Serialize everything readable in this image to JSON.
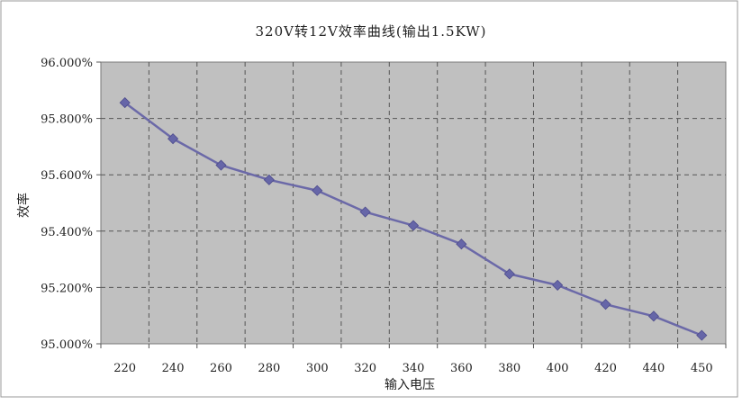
{
  "chart_data": {
    "type": "line",
    "title": "320V转12V效率曲线(输出1.5KW)",
    "xlabel": "输入电压",
    "ylabel": "效率",
    "categories": [
      "220",
      "240",
      "260",
      "280",
      "300",
      "320",
      "340",
      "360",
      "380",
      "400",
      "420",
      "440",
      "450"
    ],
    "series": [
      {
        "values": [
          95.856,
          95.728,
          95.634,
          95.582,
          95.544,
          95.468,
          95.42,
          95.354,
          95.248,
          95.208,
          95.14,
          95.098,
          95.03
        ]
      }
    ],
    "ylim": [
      95.0,
      96.0
    ],
    "yticks": [
      "95.000%",
      "95.200%",
      "95.400%",
      "95.600%",
      "95.800%",
      "96.000%"
    ],
    "ytick_values": [
      95.0,
      95.2,
      95.4,
      95.6,
      95.8,
      96.0
    ],
    "grid": true,
    "legend": "none",
    "colors": {
      "plot_background": "#c0c0c0",
      "line": "#6b69a8",
      "marker": "#6666a8",
      "grid": "#555555",
      "frame": "#999999"
    }
  }
}
